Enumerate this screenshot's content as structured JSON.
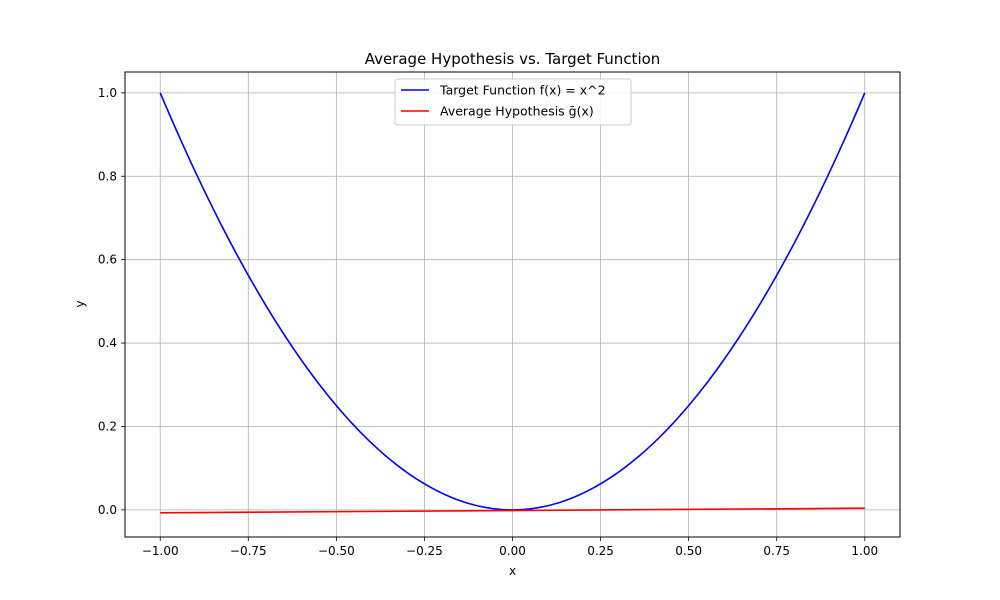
{
  "chart_data": {
    "type": "line",
    "title": "Average Hypothesis vs. Target Function",
    "xlabel": "x",
    "ylabel": "y",
    "xlim": [
      -1.1,
      1.1
    ],
    "ylim": [
      -0.065,
      1.05
    ],
    "xticks": [
      -1.0,
      -0.75,
      -0.5,
      -0.25,
      0.0,
      0.25,
      0.5,
      0.75,
      1.0
    ],
    "xtick_labels": [
      "−1.00",
      "−0.75",
      "−0.50",
      "−0.25",
      "0.00",
      "0.25",
      "0.50",
      "0.75",
      "1.00"
    ],
    "yticks": [
      0.0,
      0.2,
      0.4,
      0.6,
      0.8,
      1.0
    ],
    "ytick_labels": [
      "0.0",
      "0.2",
      "0.4",
      "0.6",
      "0.8",
      "1.0"
    ],
    "grid": true,
    "legend_position": "top-center",
    "series": [
      {
        "name": "Target Function f(x) = x^2",
        "color": "#0000ff",
        "x": [
          -1.0,
          -0.9,
          -0.8,
          -0.7,
          -0.6,
          -0.5,
          -0.4,
          -0.3,
          -0.2,
          -0.1,
          0.0,
          0.1,
          0.2,
          0.3,
          0.4,
          0.5,
          0.6,
          0.7,
          0.8,
          0.9,
          1.0
        ],
        "y": [
          1.0,
          0.81,
          0.64,
          0.49,
          0.36,
          0.25,
          0.16,
          0.09,
          0.04,
          0.01,
          0.0,
          0.01,
          0.04,
          0.09,
          0.16,
          0.25,
          0.36,
          0.49,
          0.64,
          0.81,
          1.0
        ]
      },
      {
        "name": "Average Hypothesis ḡ(x)",
        "color": "#ff0000",
        "x": [
          -1.0,
          1.0
        ],
        "y": [
          -0.007,
          0.004
        ]
      }
    ]
  }
}
